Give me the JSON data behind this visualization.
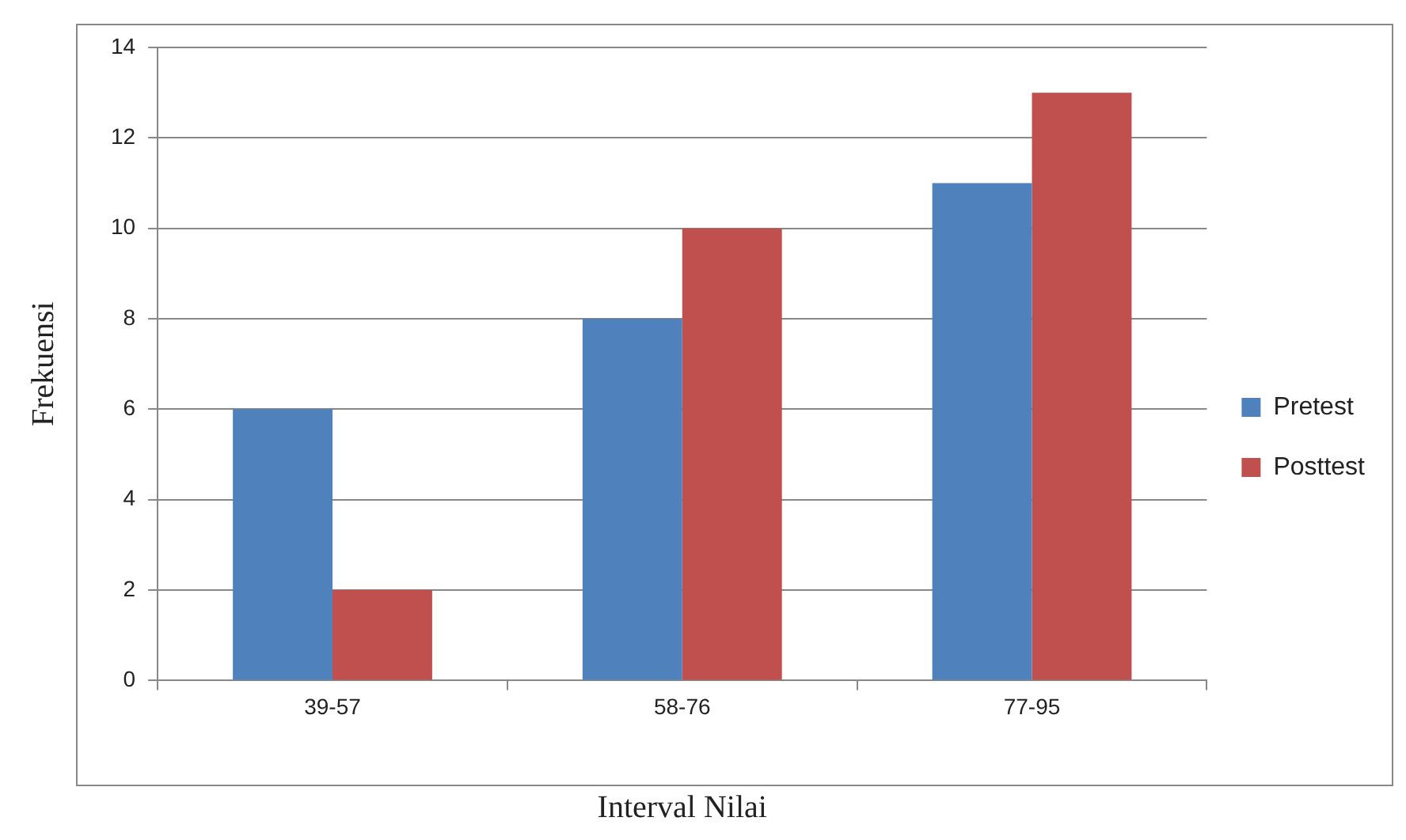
{
  "chart_data": {
    "type": "bar",
    "xlabel": "Interval Nilai",
    "ylabel": "Frekuensi",
    "categories": [
      "39-57",
      "58-76",
      "77-95"
    ],
    "series": [
      {
        "name": "Pretest",
        "color": "#4f81bd",
        "values": [
          6,
          8,
          11
        ]
      },
      {
        "name": "Posttest",
        "color": "#c0504d",
        "values": [
          2,
          10,
          13
        ]
      }
    ],
    "ylim": [
      0,
      14
    ],
    "yticks": [
      0,
      2,
      4,
      6,
      8,
      10,
      12,
      14
    ],
    "grid": "y",
    "legend": "right"
  }
}
